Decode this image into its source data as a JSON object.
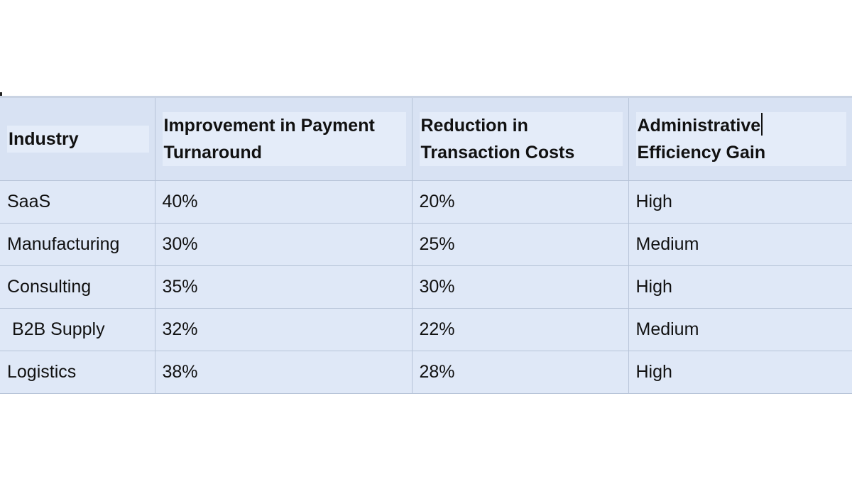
{
  "table": {
    "headers": [
      "Industry",
      "Improvement in Payment Turnaround",
      "Reduction in Transaction Costs",
      "Administrative Efficiency Gain"
    ],
    "rows": [
      [
        "SaaS",
        "40%",
        "20%",
        "High"
      ],
      [
        "Manufacturing",
        "30%",
        "25%",
        "Medium"
      ],
      [
        "Consulting",
        "35%",
        "30%",
        "High"
      ],
      [
        " B2B Supply",
        "32%",
        "22%",
        "Medium"
      ],
      [
        "Logistics",
        "38%",
        "28%",
        "High"
      ]
    ]
  },
  "colors": {
    "cell_background": "#dfe8f7",
    "header_background": "#d8e2f3",
    "border": "#b7c4d8",
    "text": "#111111"
  }
}
